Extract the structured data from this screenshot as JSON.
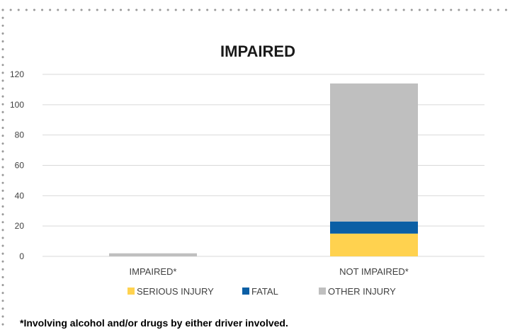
{
  "chart_data": {
    "type": "bar",
    "stacked": true,
    "title": "IMPAIRED",
    "categories": [
      "IMPAIRED*",
      "NOT IMPAIRED*"
    ],
    "series": [
      {
        "name": "SERIOUS INJURY",
        "values": [
          0,
          15
        ],
        "color": "#FFD24F"
      },
      {
        "name": "FATAL",
        "values": [
          0,
          8
        ],
        "color": "#0B5FA5"
      },
      {
        "name": "OTHER INJURY",
        "values": [
          2,
          91
        ],
        "color": "#BFBFBF"
      }
    ],
    "ylim": [
      0,
      120
    ],
    "yticks": [
      "0",
      "20",
      "40",
      "60",
      "80",
      "100",
      "120"
    ],
    "grid": true,
    "legend_position": "bottom"
  },
  "footnote": "*Involving alcohol and/or drugs by either driver involved."
}
